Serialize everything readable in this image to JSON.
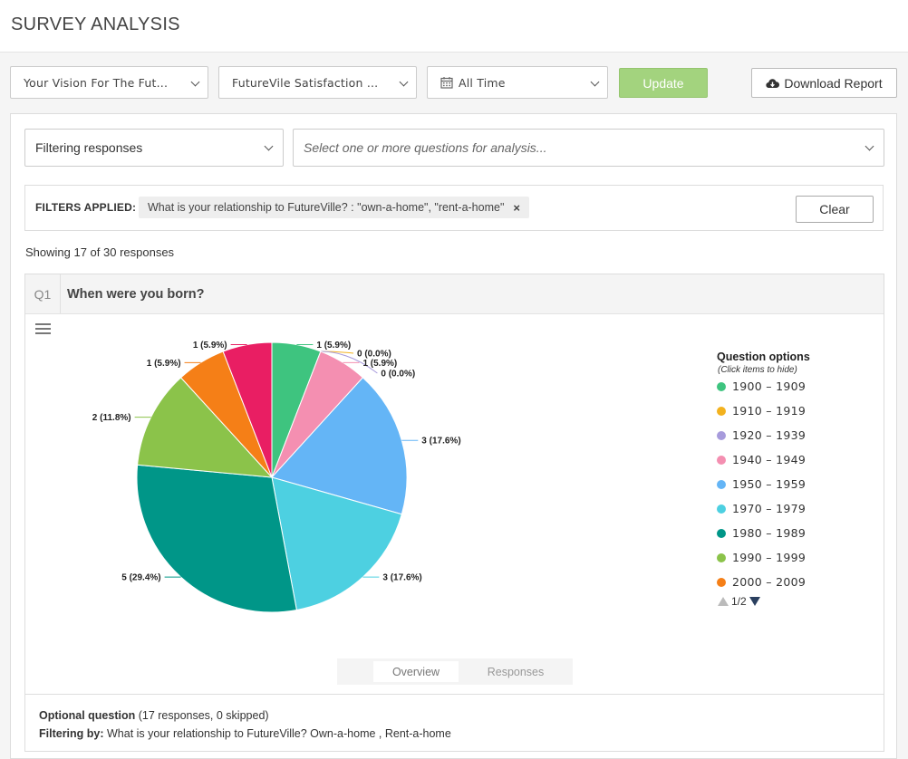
{
  "header": {
    "title": "SURVEY ANALYSIS"
  },
  "toolbar": {
    "survey_select": "Your Vision For The Fut...",
    "survey2_select": "FutureVile Satisfaction ...",
    "time_select": "All Time",
    "update_label": "Update",
    "download_label": "Download Report"
  },
  "filter_bar": {
    "mode_select": "Filtering responses",
    "questions_placeholder": "Select one or more questions for analysis..."
  },
  "filters_applied": {
    "label": "FILTERS APPLIED:",
    "chip_text": "What is your relationship to FutureVille? :  \"own-a-home\", \"rent-a-home\"",
    "chip_remove": "×",
    "clear_label": "Clear"
  },
  "showing_text": "Showing 17 of 30 responses",
  "question": {
    "number": "Q1",
    "title": "When were you born?",
    "legend_title": "Question options",
    "legend_subtitle": "(Click items to hide)",
    "pager": "1/2",
    "tabs": [
      "Overview",
      "Responses"
    ],
    "footer_optional_bold": "Optional question",
    "footer_optional_rest": " (17 responses, 0 skipped)",
    "footer_filter_bold": "Filtering by:",
    "footer_filter_rest": " What is your relationship to FutureVille? Own-a-home , Rent-a-home"
  },
  "chart_data": {
    "type": "pie",
    "total": 17,
    "slices": [
      {
        "name": "1900 – 1909",
        "value": 1,
        "label": "1 (5.9%)",
        "color": "#3ec47f"
      },
      {
        "name": "1910 – 1919",
        "value": 0,
        "label": "0 (0.0%)",
        "color": "#f3b21e"
      },
      {
        "name": "1920 – 1939",
        "value": 0,
        "label": "0 (0.0%)",
        "color": "#a79bdc"
      },
      {
        "name": "1940 – 1949",
        "value": 1,
        "label": "1 (5.9%)",
        "color": "#f48fb1"
      },
      {
        "name": "1950 – 1959",
        "value": 3,
        "label": "3 (17.6%)",
        "color": "#64b5f6"
      },
      {
        "name": "1970 – 1979",
        "value": 3,
        "label": "3 (17.6%)",
        "color": "#4dd0e1"
      },
      {
        "name": "1980 – 1989",
        "value": 5,
        "label": "5 (29.4%)",
        "color": "#009688"
      },
      {
        "name": "1990 – 1999",
        "value": 2,
        "label": "2 (11.8%)",
        "color": "#8bc34a"
      },
      {
        "name": "2000 – 2009",
        "value": 1,
        "label": "1 (5.9%)",
        "color": "#f57f17"
      },
      {
        "name": "",
        "value": 1,
        "label": "1 (5.9%)",
        "color": "#e91e63"
      }
    ],
    "legend_visible": 9,
    "legend_placement": "right"
  }
}
